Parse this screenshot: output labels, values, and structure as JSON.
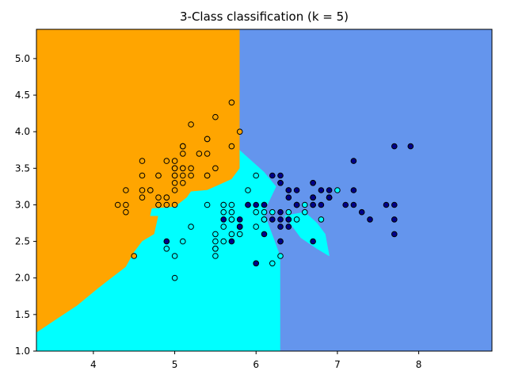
{
  "chart_data": {
    "type": "scatter",
    "title": "3-Class classification (k = 5)",
    "xlabel": "",
    "ylabel": "",
    "xlim": [
      3.3,
      8.9
    ],
    "ylim": [
      1.0,
      5.4
    ],
    "xticks": [
      "4",
      "5",
      "6",
      "7",
      "8"
    ],
    "xtick_values": [
      4,
      5,
      6,
      7,
      8
    ],
    "yticks": [
      "1.0",
      "1.5",
      "2.0",
      "2.5",
      "3.0",
      "3.5",
      "4.0",
      "4.5",
      "5.0"
    ],
    "ytick_values": [
      1.0,
      1.5,
      2.0,
      2.5,
      3.0,
      3.5,
      4.0,
      4.5,
      5.0
    ],
    "grid": false,
    "legend": "none",
    "region_colors": {
      "class_0": "#FFA500",
      "class_1": "#00FFFF",
      "class_2": "#6495ED"
    },
    "decision_regions": [
      {
        "class": "class_0",
        "polygon": [
          [
            3.3,
            1.25
          ],
          [
            3.5,
            1.4
          ],
          [
            3.8,
            1.62
          ],
          [
            4.05,
            1.85
          ],
          [
            4.2,
            1.98
          ],
          [
            4.4,
            2.15
          ],
          [
            4.5,
            2.35
          ],
          [
            4.6,
            2.5
          ],
          [
            4.75,
            2.6
          ],
          [
            4.8,
            2.85
          ],
          [
            4.7,
            2.85
          ],
          [
            4.72,
            2.95
          ],
          [
            5.0,
            2.97
          ],
          [
            5.15,
            3.1
          ],
          [
            5.2,
            3.18
          ],
          [
            5.4,
            3.2
          ],
          [
            5.5,
            3.25
          ],
          [
            5.7,
            3.35
          ],
          [
            5.8,
            3.5
          ],
          [
            5.8,
            5.4
          ],
          [
            3.3,
            5.4
          ]
        ]
      },
      {
        "class": "class_1",
        "polygon": [
          [
            3.3,
            1.0
          ],
          [
            6.3,
            1.0
          ],
          [
            6.3,
            2.3
          ],
          [
            6.2,
            2.6
          ],
          [
            6.1,
            2.9
          ],
          [
            6.25,
            3.25
          ],
          [
            6.1,
            3.45
          ],
          [
            5.95,
            3.6
          ],
          [
            5.8,
            3.75
          ],
          [
            5.8,
            3.5
          ],
          [
            5.7,
            3.35
          ],
          [
            5.5,
            3.25
          ],
          [
            5.4,
            3.2
          ],
          [
            5.2,
            3.18
          ],
          [
            5.15,
            3.1
          ],
          [
            5.0,
            2.97
          ],
          [
            4.72,
            2.95
          ],
          [
            4.7,
            2.85
          ],
          [
            4.8,
            2.85
          ],
          [
            4.75,
            2.6
          ],
          [
            4.6,
            2.5
          ],
          [
            4.5,
            2.35
          ],
          [
            4.4,
            2.15
          ],
          [
            4.2,
            1.98
          ],
          [
            4.05,
            1.85
          ],
          [
            3.8,
            1.62
          ],
          [
            3.5,
            1.4
          ],
          [
            3.3,
            1.25
          ]
        ]
      },
      {
        "class": "class_2",
        "polygon": [
          [
            5.8,
            3.75
          ],
          [
            5.95,
            3.6
          ],
          [
            6.1,
            3.45
          ],
          [
            6.25,
            3.25
          ],
          [
            6.1,
            2.9
          ],
          [
            6.2,
            2.6
          ],
          [
            6.3,
            2.3
          ],
          [
            6.3,
            1.0
          ],
          [
            8.9,
            1.0
          ],
          [
            8.9,
            5.4
          ],
          [
            5.8,
            5.4
          ]
        ]
      },
      {
        "class": "class_1",
        "polygon": [
          [
            6.35,
            2.85
          ],
          [
            6.55,
            2.55
          ],
          [
            6.75,
            2.4
          ],
          [
            6.9,
            2.3
          ],
          [
            6.85,
            2.6
          ],
          [
            6.75,
            2.75
          ],
          [
            6.6,
            2.9
          ]
        ]
      }
    ],
    "series": [
      {
        "class": "class_0",
        "color": "#FFA500",
        "points": [
          [
            5.1,
            3.5
          ],
          [
            4.9,
            3.0
          ],
          [
            4.7,
            3.2
          ],
          [
            4.6,
            3.1
          ],
          [
            5.0,
            3.6
          ],
          [
            5.4,
            3.9
          ],
          [
            4.6,
            3.4
          ],
          [
            5.0,
            3.4
          ],
          [
            4.4,
            2.9
          ],
          [
            4.9,
            3.1
          ],
          [
            5.4,
            3.7
          ],
          [
            4.8,
            3.4
          ],
          [
            4.8,
            3.0
          ],
          [
            4.3,
            3.0
          ],
          [
            5.8,
            4.0
          ],
          [
            5.7,
            4.4
          ],
          [
            5.4,
            3.9
          ],
          [
            5.1,
            3.5
          ],
          [
            5.7,
            3.8
          ],
          [
            5.1,
            3.8
          ],
          [
            5.4,
            3.4
          ],
          [
            5.1,
            3.7
          ],
          [
            4.6,
            3.6
          ],
          [
            5.1,
            3.3
          ],
          [
            4.8,
            3.4
          ],
          [
            5.0,
            3.0
          ],
          [
            5.0,
            3.4
          ],
          [
            5.2,
            3.5
          ],
          [
            5.2,
            3.4
          ],
          [
            4.7,
            3.2
          ],
          [
            4.8,
            3.1
          ],
          [
            5.4,
            3.4
          ],
          [
            5.2,
            4.1
          ],
          [
            5.5,
            4.2
          ],
          [
            4.9,
            3.1
          ],
          [
            5.0,
            3.2
          ],
          [
            5.5,
            3.5
          ],
          [
            4.9,
            3.6
          ],
          [
            4.4,
            3.0
          ],
          [
            5.1,
            3.4
          ],
          [
            5.0,
            3.5
          ],
          [
            4.5,
            2.3
          ],
          [
            4.4,
            3.2
          ],
          [
            5.0,
            3.5
          ],
          [
            5.1,
            3.8
          ],
          [
            4.8,
            3.0
          ],
          [
            5.1,
            3.8
          ],
          [
            4.6,
            3.2
          ],
          [
            5.3,
            3.7
          ],
          [
            5.0,
            3.3
          ]
        ]
      },
      {
        "class": "class_1",
        "color": "#00FFFF",
        "points": [
          [
            7.0,
            3.2
          ],
          [
            6.4,
            3.2
          ],
          [
            6.9,
            3.1
          ],
          [
            5.5,
            2.3
          ],
          [
            6.5,
            2.8
          ],
          [
            5.7,
            2.8
          ],
          [
            6.3,
            3.3
          ],
          [
            4.9,
            2.4
          ],
          [
            6.6,
            2.9
          ],
          [
            5.2,
            2.7
          ],
          [
            5.0,
            2.0
          ],
          [
            5.9,
            3.0
          ],
          [
            6.0,
            2.2
          ],
          [
            6.1,
            2.9
          ],
          [
            5.6,
            2.9
          ],
          [
            6.7,
            3.1
          ],
          [
            5.6,
            3.0
          ],
          [
            5.8,
            2.7
          ],
          [
            6.2,
            2.2
          ],
          [
            5.6,
            2.5
          ],
          [
            5.9,
            3.2
          ],
          [
            6.1,
            2.8
          ],
          [
            6.3,
            2.5
          ],
          [
            6.1,
            2.8
          ],
          [
            6.4,
            2.9
          ],
          [
            6.6,
            3.0
          ],
          [
            6.8,
            2.8
          ],
          [
            6.7,
            3.0
          ],
          [
            6.0,
            2.9
          ],
          [
            5.7,
            2.6
          ],
          [
            5.5,
            2.4
          ],
          [
            5.5,
            2.4
          ],
          [
            5.8,
            2.7
          ],
          [
            6.0,
            2.7
          ],
          [
            5.4,
            3.0
          ],
          [
            6.0,
            3.4
          ],
          [
            6.7,
            3.1
          ],
          [
            6.3,
            2.3
          ],
          [
            5.6,
            3.0
          ],
          [
            5.5,
            2.5
          ],
          [
            5.5,
            2.6
          ],
          [
            6.1,
            3.0
          ],
          [
            5.8,
            2.6
          ],
          [
            5.0,
            2.3
          ],
          [
            5.6,
            2.7
          ],
          [
            5.7,
            3.0
          ],
          [
            5.7,
            2.9
          ],
          [
            6.2,
            2.9
          ],
          [
            5.1,
            2.5
          ],
          [
            5.7,
            2.8
          ]
        ]
      },
      {
        "class": "class_2",
        "color": "#00008B",
        "points": [
          [
            6.3,
            3.3
          ],
          [
            5.8,
            2.7
          ],
          [
            7.1,
            3.0
          ],
          [
            6.3,
            2.9
          ],
          [
            6.5,
            3.0
          ],
          [
            7.6,
            3.0
          ],
          [
            4.9,
            2.5
          ],
          [
            7.3,
            2.9
          ],
          [
            6.7,
            2.5
          ],
          [
            7.2,
            3.6
          ],
          [
            6.5,
            3.2
          ],
          [
            6.4,
            2.7
          ],
          [
            6.8,
            3.0
          ],
          [
            5.7,
            2.5
          ],
          [
            5.8,
            2.8
          ],
          [
            6.4,
            3.2
          ],
          [
            6.5,
            3.0
          ],
          [
            7.7,
            3.8
          ],
          [
            7.7,
            2.6
          ],
          [
            6.0,
            2.2
          ],
          [
            6.9,
            3.2
          ],
          [
            5.6,
            2.8
          ],
          [
            7.7,
            2.8
          ],
          [
            6.3,
            2.7
          ],
          [
            6.7,
            3.3
          ],
          [
            7.2,
            3.2
          ],
          [
            6.2,
            2.8
          ],
          [
            6.1,
            3.0
          ],
          [
            6.4,
            2.8
          ],
          [
            7.2,
            3.0
          ],
          [
            7.4,
            2.8
          ],
          [
            7.9,
            3.8
          ],
          [
            6.4,
            2.8
          ],
          [
            6.3,
            2.8
          ],
          [
            6.1,
            2.6
          ],
          [
            7.7,
            3.0
          ],
          [
            6.3,
            3.4
          ],
          [
            6.4,
            3.1
          ],
          [
            6.0,
            3.0
          ],
          [
            6.9,
            3.1
          ],
          [
            6.7,
            3.1
          ],
          [
            6.9,
            3.1
          ],
          [
            5.8,
            2.7
          ],
          [
            6.8,
            3.2
          ],
          [
            6.7,
            3.3
          ],
          [
            6.7,
            3.0
          ],
          [
            6.3,
            2.5
          ],
          [
            6.5,
            3.0
          ],
          [
            6.2,
            3.4
          ],
          [
            5.9,
            3.0
          ]
        ]
      }
    ]
  }
}
